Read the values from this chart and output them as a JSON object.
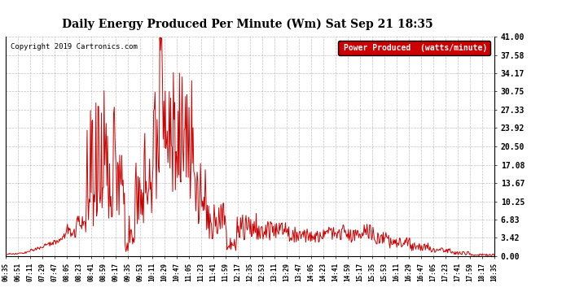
{
  "title": "Daily Energy Produced Per Minute (Wm) Sat Sep 21 18:35",
  "copyright": "Copyright 2019 Cartronics.com",
  "legend_label": "Power Produced  (watts/minute)",
  "legend_bg": "#cc0000",
  "legend_fg": "#ffffff",
  "line_color": "#cc0000",
  "bg_color": "#ffffff",
  "plot_bg": "#ffffff",
  "grid_color": "#999999",
  "yticks": [
    0.0,
    3.42,
    6.83,
    10.25,
    13.67,
    17.08,
    20.5,
    23.92,
    27.33,
    30.75,
    34.17,
    37.58,
    41.0
  ],
  "ylim": [
    0.0,
    41.0
  ],
  "xtick_labels": [
    "06:35",
    "06:51",
    "07:11",
    "07:29",
    "07:47",
    "08:05",
    "08:23",
    "08:41",
    "08:59",
    "09:17",
    "09:35",
    "09:53",
    "10:11",
    "10:29",
    "10:47",
    "11:05",
    "11:23",
    "11:41",
    "11:59",
    "12:17",
    "12:35",
    "12:53",
    "13:11",
    "13:29",
    "13:47",
    "14:05",
    "14:23",
    "14:41",
    "14:59",
    "15:17",
    "15:35",
    "15:53",
    "16:11",
    "16:29",
    "16:47",
    "17:05",
    "17:23",
    "17:41",
    "17:59",
    "18:17",
    "18:35"
  ]
}
